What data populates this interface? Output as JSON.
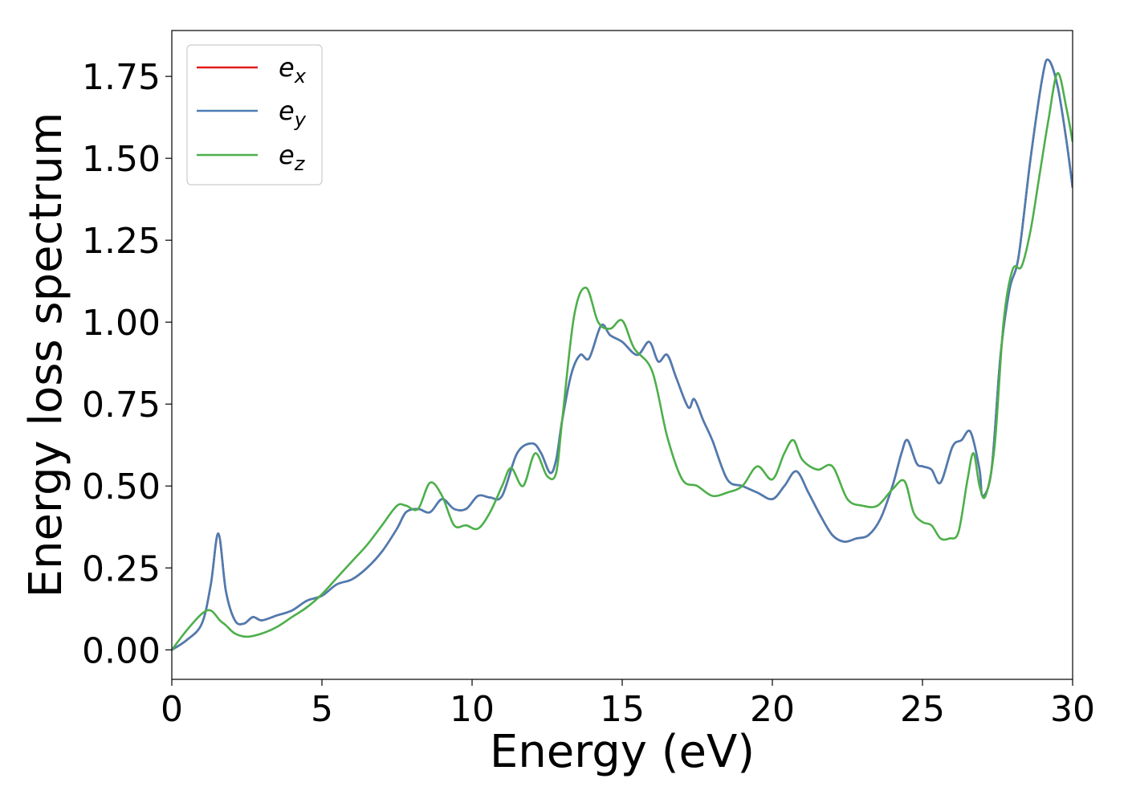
{
  "chart_data": {
    "type": "line",
    "title": "",
    "xlabel": "Energy (eV)",
    "ylabel": "Energy loss spectrum",
    "xlim": [
      0,
      30
    ],
    "ylim": [
      -0.09,
      1.89
    ],
    "xticks": [
      0,
      5,
      10,
      15,
      20,
      25,
      30
    ],
    "xtick_labels": [
      "0",
      "5",
      "10",
      "15",
      "20",
      "25",
      "30"
    ],
    "yticks": [
      0.0,
      0.25,
      0.5,
      0.75,
      1.0,
      1.25,
      1.5,
      1.75
    ],
    "ytick_labels": [
      "0.00",
      "0.25",
      "0.50",
      "0.75",
      "1.00",
      "1.25",
      "1.50",
      "1.75"
    ],
    "grid": false,
    "legend": {
      "position": "top-left"
    },
    "series": [
      {
        "name": "e_x",
        "base": "e",
        "sub": "x",
        "color": "#e41a1c",
        "x": [
          0,
          0.5,
          1.0,
          1.3,
          1.55,
          1.8,
          2.1,
          2.4,
          2.7,
          3.0,
          3.5,
          4.0,
          4.5,
          5.0,
          5.5,
          6.0,
          6.5,
          7.0,
          7.5,
          7.8,
          8.2,
          8.6,
          9.0,
          9.4,
          9.8,
          10.2,
          10.6,
          11.0,
          11.5,
          12.0,
          12.3,
          12.6,
          12.8,
          13.0,
          13.3,
          13.6,
          13.9,
          14.3,
          14.6,
          15.0,
          15.5,
          15.9,
          16.2,
          16.5,
          16.8,
          17.2,
          17.4,
          17.7,
          18.0,
          18.5,
          19.0,
          19.5,
          20.0,
          20.4,
          20.8,
          21.2,
          21.6,
          22.0,
          22.4,
          22.8,
          23.2,
          23.6,
          24.0,
          24.3,
          24.5,
          24.8,
          25.0,
          25.3,
          25.6,
          26.0,
          26.3,
          26.6,
          26.9,
          27.0,
          27.3,
          27.6,
          27.9,
          28.2,
          28.6,
          29.0,
          29.2,
          29.5,
          29.8,
          30.0
        ],
        "y": [
          0.0,
          0.03,
          0.08,
          0.2,
          0.355,
          0.18,
          0.09,
          0.08,
          0.1,
          0.09,
          0.105,
          0.12,
          0.15,
          0.165,
          0.2,
          0.215,
          0.25,
          0.3,
          0.37,
          0.42,
          0.43,
          0.42,
          0.46,
          0.43,
          0.43,
          0.47,
          0.465,
          0.47,
          0.6,
          0.63,
          0.6,
          0.54,
          0.58,
          0.7,
          0.84,
          0.9,
          0.89,
          0.99,
          0.96,
          0.94,
          0.9,
          0.94,
          0.88,
          0.9,
          0.83,
          0.74,
          0.765,
          0.7,
          0.64,
          0.52,
          0.5,
          0.48,
          0.46,
          0.5,
          0.545,
          0.48,
          0.41,
          0.35,
          0.33,
          0.34,
          0.35,
          0.4,
          0.5,
          0.6,
          0.64,
          0.57,
          0.56,
          0.55,
          0.51,
          0.62,
          0.64,
          0.665,
          0.55,
          0.47,
          0.55,
          0.9,
          1.1,
          1.2,
          1.5,
          1.75,
          1.8,
          1.72,
          1.55,
          1.41
        ]
      },
      {
        "name": "e_y",
        "base": "e",
        "sub": "y",
        "color": "#4a7db3",
        "x": [
          0,
          0.5,
          1.0,
          1.3,
          1.55,
          1.8,
          2.1,
          2.4,
          2.7,
          3.0,
          3.5,
          4.0,
          4.5,
          5.0,
          5.5,
          6.0,
          6.5,
          7.0,
          7.5,
          7.8,
          8.2,
          8.6,
          9.0,
          9.4,
          9.8,
          10.2,
          10.6,
          11.0,
          11.5,
          12.0,
          12.3,
          12.6,
          12.8,
          13.0,
          13.3,
          13.6,
          13.9,
          14.3,
          14.6,
          15.0,
          15.5,
          15.9,
          16.2,
          16.5,
          16.8,
          17.2,
          17.4,
          17.7,
          18.0,
          18.5,
          19.0,
          19.5,
          20.0,
          20.4,
          20.8,
          21.2,
          21.6,
          22.0,
          22.4,
          22.8,
          23.2,
          23.6,
          24.0,
          24.3,
          24.5,
          24.8,
          25.0,
          25.3,
          25.6,
          26.0,
          26.3,
          26.6,
          26.9,
          27.0,
          27.3,
          27.6,
          27.9,
          28.2,
          28.6,
          29.0,
          29.2,
          29.5,
          29.8,
          30.0
        ],
        "y": [
          0.0,
          0.03,
          0.08,
          0.2,
          0.355,
          0.18,
          0.09,
          0.08,
          0.1,
          0.09,
          0.105,
          0.12,
          0.15,
          0.165,
          0.2,
          0.215,
          0.25,
          0.3,
          0.37,
          0.42,
          0.43,
          0.42,
          0.46,
          0.43,
          0.43,
          0.47,
          0.465,
          0.47,
          0.6,
          0.63,
          0.6,
          0.54,
          0.58,
          0.7,
          0.84,
          0.9,
          0.89,
          0.99,
          0.96,
          0.94,
          0.9,
          0.94,
          0.88,
          0.9,
          0.83,
          0.74,
          0.765,
          0.7,
          0.64,
          0.52,
          0.5,
          0.48,
          0.46,
          0.5,
          0.545,
          0.48,
          0.41,
          0.35,
          0.33,
          0.34,
          0.35,
          0.4,
          0.5,
          0.6,
          0.64,
          0.57,
          0.56,
          0.55,
          0.51,
          0.62,
          0.64,
          0.665,
          0.55,
          0.47,
          0.55,
          0.9,
          1.1,
          1.2,
          1.5,
          1.75,
          1.8,
          1.72,
          1.55,
          1.41
        ]
      },
      {
        "name": "e_z",
        "base": "e",
        "sub": "z",
        "color": "#4daf4a",
        "x": [
          0,
          0.5,
          1.0,
          1.3,
          1.6,
          1.8,
          2.1,
          2.5,
          3.0,
          3.5,
          4.0,
          4.5,
          5.0,
          5.5,
          6.0,
          6.5,
          7.0,
          7.5,
          7.8,
          8.2,
          8.6,
          9.0,
          9.4,
          9.8,
          10.2,
          10.6,
          11.0,
          11.3,
          11.7,
          12.1,
          12.5,
          12.8,
          13.0,
          13.4,
          13.8,
          14.2,
          14.6,
          15.0,
          15.4,
          16.0,
          16.5,
          17.0,
          17.5,
          18.0,
          18.5,
          19.0,
          19.5,
          20.0,
          20.4,
          20.7,
          21.0,
          21.5,
          22.0,
          22.5,
          23.0,
          23.5,
          24.0,
          24.4,
          24.7,
          25.0,
          25.3,
          25.6,
          25.9,
          26.2,
          26.5,
          26.7,
          26.9,
          27.1,
          27.4,
          27.7,
          28.0,
          28.3,
          28.6,
          28.9,
          29.2,
          29.5,
          29.8,
          30.0
        ],
        "y": [
          0.0,
          0.06,
          0.11,
          0.12,
          0.09,
          0.075,
          0.05,
          0.04,
          0.05,
          0.07,
          0.1,
          0.13,
          0.17,
          0.22,
          0.27,
          0.32,
          0.38,
          0.44,
          0.44,
          0.43,
          0.51,
          0.47,
          0.38,
          0.38,
          0.37,
          0.42,
          0.5,
          0.555,
          0.5,
          0.6,
          0.53,
          0.54,
          0.7,
          1.02,
          1.105,
          1.0,
          0.98,
          1.005,
          0.92,
          0.85,
          0.65,
          0.52,
          0.5,
          0.47,
          0.48,
          0.5,
          0.56,
          0.52,
          0.6,
          0.64,
          0.58,
          0.55,
          0.56,
          0.46,
          0.44,
          0.44,
          0.49,
          0.515,
          0.42,
          0.39,
          0.38,
          0.34,
          0.34,
          0.36,
          0.52,
          0.6,
          0.5,
          0.47,
          0.62,
          1.0,
          1.16,
          1.17,
          1.28,
          1.45,
          1.62,
          1.76,
          1.65,
          1.55
        ]
      }
    ]
  }
}
